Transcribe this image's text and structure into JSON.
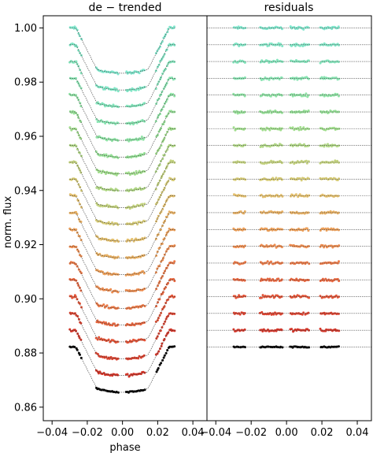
{
  "chart_data": [
    {
      "type": "scatter",
      "title": "de − trended",
      "xlabel": "phase",
      "ylabel": "norm. flux",
      "xlim": [
        -0.045,
        0.048
      ],
      "ylim": [
        0.855,
        1.0045
      ],
      "xticks": [
        -0.04,
        -0.02,
        0.0,
        0.02,
        0.04
      ],
      "xticklabels": [
        "−0.04",
        "−0.02",
        "0.00",
        "0.02",
        "0.04"
      ],
      "yticks": [
        0.86,
        0.88,
        0.9,
        0.92,
        0.94,
        0.96,
        0.98,
        1.0
      ],
      "yticklabels": [
        "0.86",
        "0.88",
        "0.90",
        "0.92",
        "0.94",
        "0.96",
        "0.98",
        "1.00"
      ],
      "light_curves": {
        "count": 20,
        "baseline_top": 1.0,
        "baseline_bottom": 0.8822,
        "transit_depth": 0.0167,
        "contact_points_phase": [
          -0.0265,
          -0.0145,
          0.0145,
          0.0265
        ],
        "observed_phase_windows": [
          [
            -0.03,
            -0.023
          ],
          [
            -0.015,
            -0.002
          ],
          [
            0.002,
            0.013
          ],
          [
            0.019,
            0.03
          ]
        ],
        "colors_top_to_bottom": [
          "#7fe6cc",
          "#81e6c6",
          "#84e6bd",
          "#88e5b2",
          "#8ee3a4",
          "#95e096",
          "#a0dd8c",
          "#b1d886",
          "#c3d27e",
          "#d6cb76",
          "#e3bf6d",
          "#e8b063",
          "#ec9f59",
          "#ee8d50",
          "#ec7a47",
          "#e8663e",
          "#e35336",
          "#dc422f",
          "#d43528",
          "#000000"
        ]
      },
      "grid": false
    },
    {
      "type": "scatter",
      "title": "residuals",
      "xlabel": "",
      "xlim": [
        -0.045,
        0.048
      ],
      "xticks": [
        -0.04,
        -0.02,
        0.0,
        0.02,
        0.04
      ],
      "xticklabels": [
        "−0.04",
        "−0.02",
        "0.00",
        "0.02",
        "0.04"
      ],
      "residual_baselines": "same offsets as the de-trended out-of-transit flux levels",
      "grid": false
    }
  ]
}
